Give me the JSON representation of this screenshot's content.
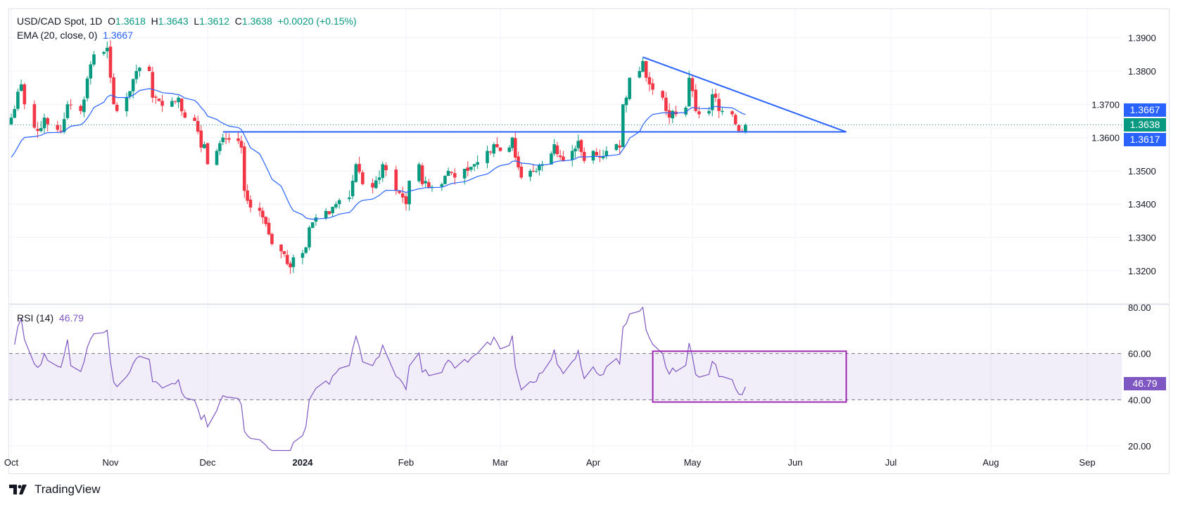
{
  "header": {
    "symbol": "USD/CAD Spot, 1D",
    "o_label": "O",
    "open": "1.3618",
    "h_label": "H",
    "high": "1.3643",
    "l_label": "L",
    "low": "1.3612",
    "c_label": "C",
    "close": "1.3638",
    "change": "+0.0020 (+0.15%)"
  },
  "ema_legend": {
    "label": "EMA (20, close, 0)",
    "value": "1.3667"
  },
  "rsi_legend": {
    "label": "RSI (14)",
    "value": "46.79"
  },
  "price_tags": {
    "ema": "1.3667",
    "last": "1.3638",
    "support": "1.3617"
  },
  "rsi_tag": "46.79",
  "brand": "TradingView",
  "colors": {
    "up": "#089981",
    "down": "#f23645",
    "ema": "#2962ff",
    "rsi": "#7e57c2",
    "box": "#9c27b0",
    "trend": "#2962ff"
  },
  "chart_data": {
    "type": "candlestick",
    "title": "USD/CAD Spot, 1D",
    "price_ticks": [
      "1.3200",
      "1.3300",
      "1.3400",
      "1.3500",
      "1.3600",
      "1.3700",
      "1.3800",
      "1.3900"
    ],
    "ylim": [
      1.312,
      1.397
    ],
    "x_ticks": [
      {
        "label": "Oct",
        "date": "2023-10-02"
      },
      {
        "label": "Nov",
        "date": "2023-11-01"
      },
      {
        "label": "Dec",
        "date": "2023-12-01"
      },
      {
        "label": "2024",
        "date": "2024-01-01",
        "bold": true
      },
      {
        "label": "Feb",
        "date": "2024-02-01"
      },
      {
        "label": "Mar",
        "date": "2024-03-01"
      },
      {
        "label": "Apr",
        "date": "2024-04-01"
      },
      {
        "label": "May",
        "date": "2024-05-01"
      },
      {
        "label": "Jun",
        "date": "2024-06-01"
      },
      {
        "label": "Jul",
        "date": "2024-07-01"
      },
      {
        "label": "Aug",
        "date": "2024-08-01"
      },
      {
        "label": "Sep",
        "date": "2024-09-01"
      }
    ],
    "last_candle": {
      "date": "2024-05-17",
      "open": 1.3618,
      "high": 1.3643,
      "low": 1.3612,
      "close": 1.3638
    },
    "close_waypoints": [
      [
        "2023-10-02",
        1.366
      ],
      [
        "2023-10-05",
        1.376
      ],
      [
        "2023-10-06",
        1.37
      ],
      [
        "2023-10-10",
        1.362
      ],
      [
        "2023-10-12",
        1.366
      ],
      [
        "2023-10-13",
        1.364
      ],
      [
        "2023-10-17",
        1.362
      ],
      [
        "2023-10-19",
        1.37
      ],
      [
        "2023-10-23",
        1.368
      ],
      [
        "2023-10-26",
        1.382
      ],
      [
        "2023-10-27",
        1.385
      ],
      [
        "2023-10-31",
        1.387
      ],
      [
        "2023-11-01",
        1.378
      ],
      [
        "2023-11-02",
        1.37
      ],
      [
        "2023-11-03",
        1.368
      ],
      [
        "2023-11-06",
        1.372
      ],
      [
        "2023-11-09",
        1.38
      ],
      [
        "2023-11-10",
        1.381
      ],
      [
        "2023-11-13",
        1.38
      ],
      [
        "2023-11-14",
        1.372
      ],
      [
        "2023-11-16",
        1.371
      ],
      [
        "2023-11-20",
        1.371
      ],
      [
        "2023-11-22",
        1.372
      ],
      [
        "2023-11-24",
        1.366
      ],
      [
        "2023-11-27",
        1.365
      ],
      [
        "2023-11-29",
        1.357
      ],
      [
        "2023-11-30",
        1.358
      ],
      [
        "2023-12-01",
        1.352
      ],
      [
        "2023-12-04",
        1.356
      ],
      [
        "2023-12-06",
        1.36
      ],
      [
        "2023-12-07",
        1.3595
      ],
      [
        "2023-12-11",
        1.359
      ],
      [
        "2023-12-12",
        1.357
      ],
      [
        "2023-12-13",
        1.344
      ],
      [
        "2023-12-14",
        1.341
      ],
      [
        "2023-12-18",
        1.338
      ],
      [
        "2023-12-19",
        1.336
      ],
      [
        "2023-12-20",
        1.334
      ],
      [
        "2023-12-22",
        1.328
      ],
      [
        "2023-12-26",
        1.325
      ],
      [
        "2023-12-27",
        1.322
      ],
      [
        "2023-12-28",
        1.321
      ],
      [
        "2023-12-29",
        1.324
      ],
      [
        "2024-01-02",
        1.327
      ],
      [
        "2024-01-03",
        1.333
      ],
      [
        "2024-01-05",
        1.336
      ],
      [
        "2024-01-09",
        1.337
      ],
      [
        "2024-01-11",
        1.34
      ],
      [
        "2024-01-15",
        1.342
      ],
      [
        "2024-01-16",
        1.347
      ],
      [
        "2024-01-17",
        1.352
      ],
      [
        "2024-01-19",
        1.346
      ],
      [
        "2024-01-22",
        1.345
      ],
      [
        "2024-01-24",
        1.348
      ],
      [
        "2024-01-25",
        1.352
      ],
      [
        "2024-01-29",
        1.344
      ],
      [
        "2024-01-31",
        1.342
      ],
      [
        "2024-02-01",
        1.34
      ],
      [
        "2024-02-02",
        1.347
      ],
      [
        "2024-02-05",
        1.352
      ],
      [
        "2024-02-06",
        1.346
      ],
      [
        "2024-02-08",
        1.345
      ],
      [
        "2024-02-12",
        1.346
      ],
      [
        "2024-02-14",
        1.35
      ],
      [
        "2024-02-16",
        1.348
      ],
      [
        "2024-02-20",
        1.35
      ],
      [
        "2024-02-22",
        1.352
      ],
      [
        "2024-02-26",
        1.356
      ],
      [
        "2024-02-28",
        1.358
      ],
      [
        "2024-03-01",
        1.356
      ],
      [
        "2024-03-04",
        1.357
      ],
      [
        "2024-03-05",
        1.36
      ],
      [
        "2024-03-06",
        1.354
      ],
      [
        "2024-03-08",
        1.348
      ],
      [
        "2024-03-11",
        1.35
      ],
      [
        "2024-03-13",
        1.35
      ],
      [
        "2024-03-15",
        1.352
      ],
      [
        "2024-03-19",
        1.358
      ],
      [
        "2024-03-20",
        1.355
      ],
      [
        "2024-03-22",
        1.353
      ],
      [
        "2024-03-25",
        1.356
      ],
      [
        "2024-03-27",
        1.359
      ],
      [
        "2024-03-29",
        1.353
      ],
      [
        "2024-04-01",
        1.356
      ],
      [
        "2024-04-03",
        1.354
      ],
      [
        "2024-04-05",
        1.356
      ],
      [
        "2024-04-08",
        1.358
      ],
      [
        "2024-04-09",
        1.357
      ],
      [
        "2024-04-10",
        1.37
      ],
      [
        "2024-04-11",
        1.372
      ],
      [
        "2024-04-12",
        1.378
      ],
      [
        "2024-04-15",
        1.38
      ],
      [
        "2024-04-16",
        1.383
      ],
      [
        "2024-04-17",
        1.378
      ],
      [
        "2024-04-18",
        1.376
      ],
      [
        "2024-04-22",
        1.372
      ],
      [
        "2024-04-23",
        1.368
      ],
      [
        "2024-04-24",
        1.366
      ],
      [
        "2024-04-25",
        1.368
      ],
      [
        "2024-04-26",
        1.367
      ],
      [
        "2024-04-29",
        1.369
      ],
      [
        "2024-04-30",
        1.378
      ],
      [
        "2024-05-01",
        1.374
      ],
      [
        "2024-05-02",
        1.368
      ],
      [
        "2024-05-03",
        1.367
      ],
      [
        "2024-05-06",
        1.368
      ],
      [
        "2024-05-07",
        1.373
      ],
      [
        "2024-05-08",
        1.372
      ],
      [
        "2024-05-09",
        1.368
      ],
      [
        "2024-05-10",
        1.368
      ],
      [
        "2024-05-13",
        1.367
      ],
      [
        "2024-05-14",
        1.364
      ],
      [
        "2024-05-15",
        1.362
      ],
      [
        "2024-05-16",
        1.3618
      ],
      [
        "2024-05-17",
        1.3638
      ]
    ],
    "ema": {
      "period": 20,
      "last": 1.3667
    },
    "rsi": {
      "period": 14,
      "last": 46.79,
      "ticks": [
        "80.00",
        "60.00",
        "40.00",
        "20.00"
      ],
      "ylim": [
        14,
        82
      ],
      "band": [
        40,
        60
      ]
    },
    "annotations": {
      "support_line": {
        "price": 1.3617,
        "from": "2023-12-06",
        "to": "2024-06-17"
      },
      "trend_line": {
        "from": [
          "2024-04-16",
          1.3842
        ],
        "to": [
          "2024-06-17",
          1.3617
        ]
      },
      "rsi_box": {
        "from": "2024-04-19",
        "to": "2024-06-17",
        "rsi_range": [
          39,
          61
        ]
      }
    }
  }
}
